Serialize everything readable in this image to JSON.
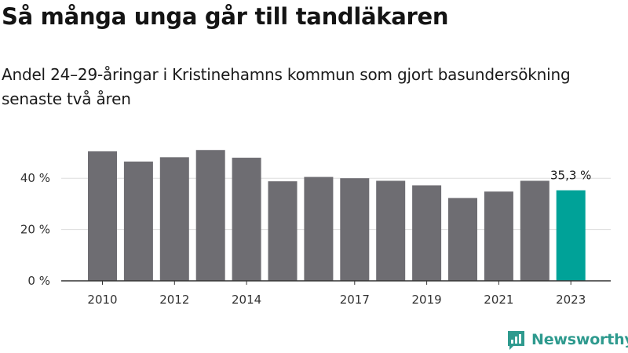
{
  "title": "Så många unga går till tandläkaren",
  "subtitle": "Andel 24–29-åringar i Kristinehamns kommun som gjort basundersökning senaste två åren",
  "logo_text": "Newsworthy",
  "colors": {
    "bar": "#6e6d72",
    "highlight": "#00a298",
    "axis": "#333333",
    "grid": "#dddddd",
    "brand": "#2e9a8e"
  },
  "icons": {
    "logo": "newsworthy-logo-icon"
  },
  "chart_data": {
    "type": "bar",
    "categories": [
      "2010",
      "2011",
      "2012",
      "2013",
      "2014",
      "2015",
      "2016",
      "2017",
      "2018",
      "2019",
      "2020",
      "2021",
      "2022",
      "2023"
    ],
    "values": [
      50.5,
      46.5,
      48.2,
      51,
      48,
      38.8,
      40.5,
      40,
      39,
      37.2,
      32.3,
      34.8,
      39,
      35.3
    ],
    "highlight_index": 13,
    "x_tick_labels": [
      "2010",
      "2012",
      "2014",
      "2017",
      "2019",
      "2021",
      "2023"
    ],
    "y_ticks": [
      0,
      20,
      40
    ],
    "y_tick_labels": [
      "0 %",
      "20 %",
      "40 %"
    ],
    "ylim": [
      0,
      55
    ],
    "value_labels": [
      {
        "index": 13,
        "text": "35,3 %"
      }
    ],
    "grid": true,
    "legend": "none"
  }
}
